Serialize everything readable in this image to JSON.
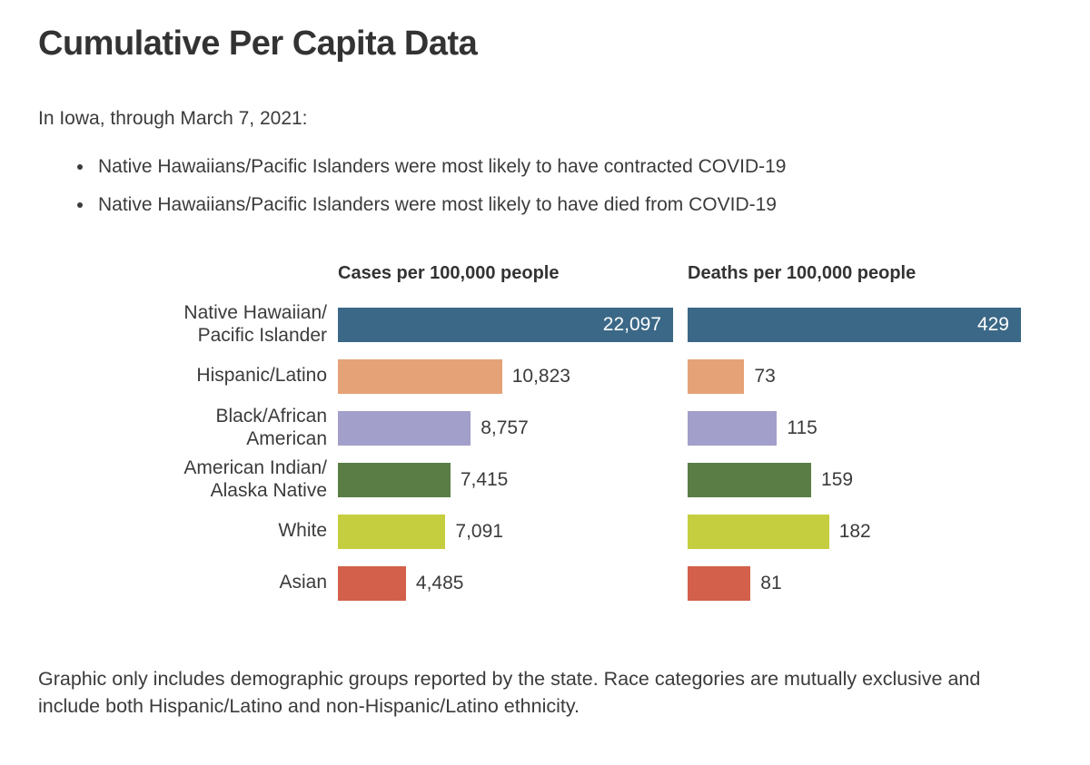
{
  "title": "Cumulative Per Capita Data",
  "subtitle": "In Iowa, through March 7, 2021:",
  "bullets": [
    "Native Hawaiians/Pacific Islanders were most likely to have contracted COVID-19",
    "Native Hawaiians/Pacific Islanders were most likely to have died from COVID-19"
  ],
  "footnote": "Graphic only includes demographic groups reported by the state. Race categories are mutually exclusive and include both Hispanic/Latino and non-Hispanic/Latino ethnicity.",
  "chart_data": {
    "type": "bar",
    "orientation": "horizontal",
    "grid": false,
    "legend": "none",
    "scaling_note": "each chart's bars are scaled relative to that chart's maximum value",
    "categories": [
      "Native Hawaiian/\nPacific Islander",
      "Hispanic/Latino",
      "Black/African\nAmerican",
      "American Indian/\nAlaska Native",
      "White",
      "Asian"
    ],
    "series": [
      {
        "name": "Cases per 100,000 people",
        "values": [
          22097,
          10823,
          8757,
          7415,
          7091,
          4485
        ],
        "value_labels": [
          "22,097",
          "10,823",
          "8,757",
          "7,415",
          "7,091",
          "4,485"
        ]
      },
      {
        "name": "Deaths per 100,000 people",
        "values": [
          429,
          73,
          115,
          159,
          182,
          81
        ],
        "value_labels": [
          "429",
          "73",
          "115",
          "159",
          "182",
          "81"
        ]
      }
    ],
    "bar_colors": [
      "#3C6887",
      "#E5A277",
      "#A39FCB",
      "#5A7D46",
      "#C5CE3E",
      "#D2604A"
    ],
    "value_label_placement": "inside bar (white) for max value row, outside right (dark) otherwise"
  }
}
